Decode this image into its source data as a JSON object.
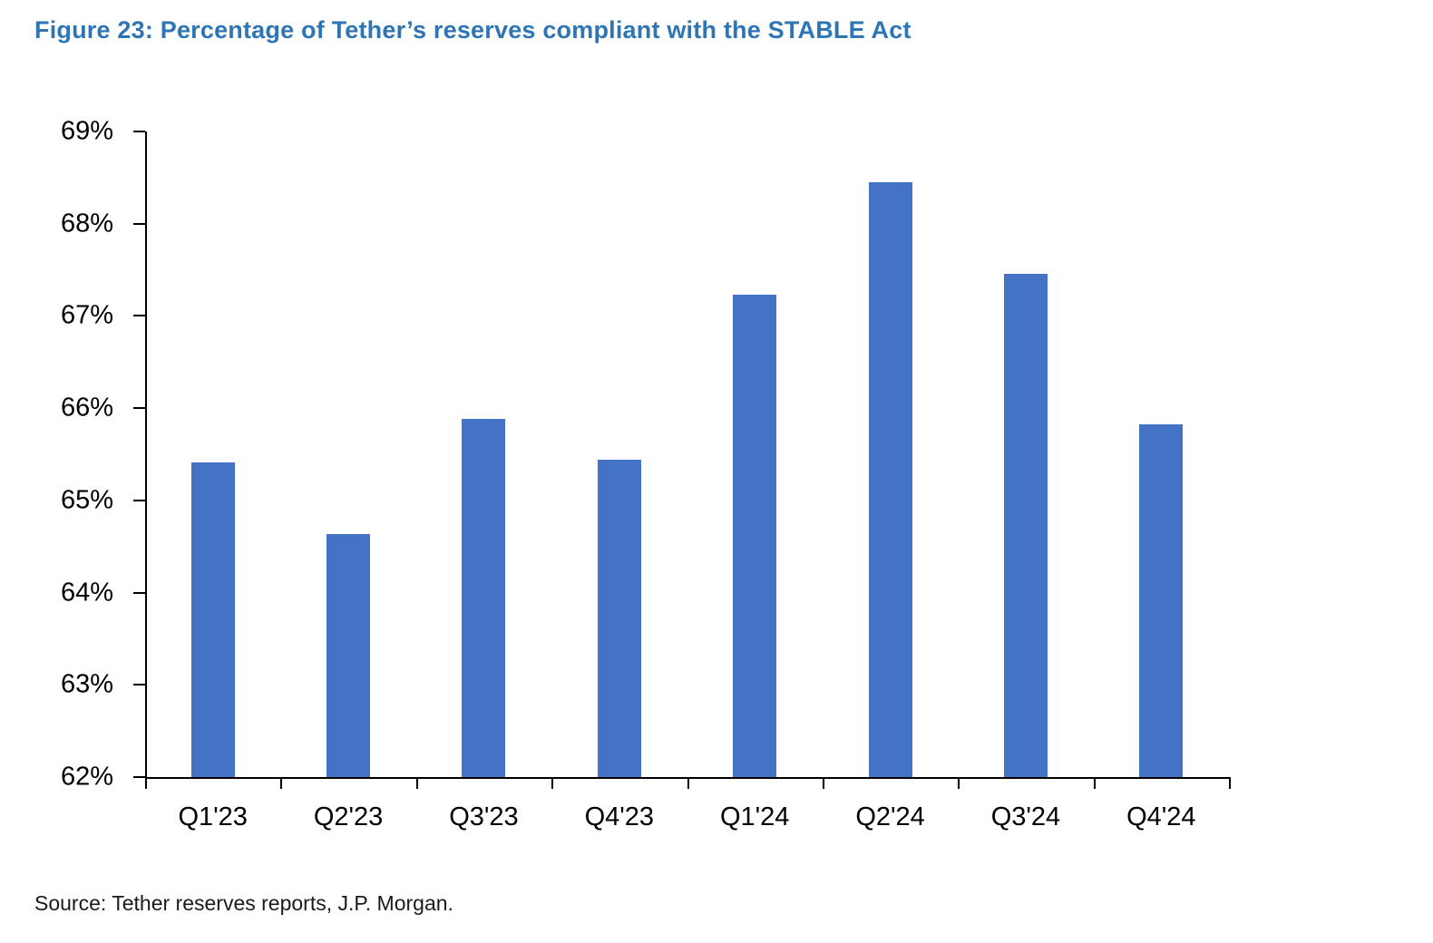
{
  "title": "Figure 23: Percentage of Tether’s reserves compliant with the STABLE Act",
  "source": "Source: Tether reserves reports, J.P. Morgan.",
  "colors": {
    "bar": "#4472C4",
    "title": "#2E75B6",
    "axis": "#000000"
  },
  "chart_data": {
    "type": "bar",
    "categories": [
      "Q1'23",
      "Q2'23",
      "Q3'23",
      "Q4'23",
      "Q1'24",
      "Q2'24",
      "Q3'24",
      "Q4'24"
    ],
    "values": [
      65.41,
      64.63,
      65.88,
      65.44,
      67.23,
      68.45,
      67.46,
      65.82
    ],
    "title": "Figure 23: Percentage of Tether’s reserves compliant with the STABLE Act",
    "xlabel": "",
    "ylabel": "",
    "ylim": [
      62,
      69
    ],
    "ytick_step": 1,
    "ytick_suffix": "%",
    "grid": false,
    "legend": false
  }
}
